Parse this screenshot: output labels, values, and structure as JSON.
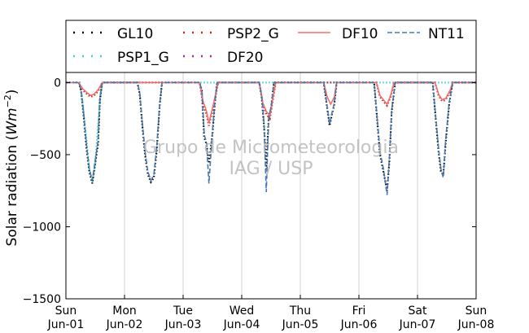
{
  "chart_data": {
    "type": "line",
    "title": "",
    "ylabel": "Solar radiation ($Wm^{-2}$)",
    "ylabel_main": "Solar radiation (",
    "ylabel_unit": "Wm",
    "ylabel_exp": "−2",
    "ylabel_close": ")",
    "xlabel": "",
    "ylim": [
      -1500,
      70
    ],
    "xlim": [
      0,
      7
    ],
    "yticks": [
      0,
      -500,
      -1000,
      -1500
    ],
    "ytick_labels": [
      "0",
      "−500",
      "−1000",
      "−1500"
    ],
    "xticks": [
      {
        "pos": 0,
        "day": "Sun",
        "date": "Jun-01"
      },
      {
        "pos": 1,
        "day": "Mon",
        "date": "Jun-02"
      },
      {
        "pos": 2,
        "day": "Tue",
        "date": "Jun-03"
      },
      {
        "pos": 3,
        "day": "Wed",
        "date": "Jun-04"
      },
      {
        "pos": 4,
        "day": "Thu",
        "date": "Jun-05"
      },
      {
        "pos": 5,
        "day": "Fri",
        "date": "Jun-06"
      },
      {
        "pos": 6,
        "day": "Sat",
        "date": "Jun-07"
      },
      {
        "pos": 7,
        "day": "Sun",
        "date": "Jun-08"
      }
    ],
    "grid": true,
    "legend_position": "top",
    "watermark": [
      "Grupo de Micrometeorologia",
      "IAG / USP"
    ],
    "series": [
      {
        "name": "GL10",
        "color": "#000000",
        "style": "dotted",
        "points": [
          [
            0.22,
            0
          ],
          [
            0.26,
            -60
          ],
          [
            0.3,
            -220
          ],
          [
            0.35,
            -450
          ],
          [
            0.4,
            -620
          ],
          [
            0.45,
            -700
          ],
          [
            0.5,
            -560
          ],
          [
            0.55,
            -420
          ],
          [
            0.58,
            -120
          ],
          [
            0.62,
            0
          ],
          [
            1.22,
            0
          ],
          [
            1.26,
            -80
          ],
          [
            1.3,
            -280
          ],
          [
            1.35,
            -500
          ],
          [
            1.4,
            -640
          ],
          [
            1.45,
            -690
          ],
          [
            1.5,
            -660
          ],
          [
            1.55,
            -470
          ],
          [
            1.6,
            -160
          ],
          [
            1.64,
            0
          ],
          [
            2.28,
            0
          ],
          [
            2.32,
            -60
          ],
          [
            2.36,
            -380
          ],
          [
            2.4,
            -430
          ],
          [
            2.44,
            -560
          ],
          [
            2.5,
            -360
          ],
          [
            2.54,
            -150
          ],
          [
            2.58,
            0
          ],
          [
            3.3,
            0
          ],
          [
            3.34,
            -100
          ],
          [
            3.38,
            -300
          ],
          [
            3.42,
            -600
          ],
          [
            3.46,
            -250
          ],
          [
            3.5,
            -180
          ],
          [
            3.55,
            0
          ],
          [
            4.4,
            0
          ],
          [
            4.45,
            -150
          ],
          [
            4.5,
            -300
          ],
          [
            4.54,
            -220
          ],
          [
            4.58,
            -150
          ],
          [
            4.62,
            0
          ],
          [
            5.26,
            0
          ],
          [
            5.3,
            -200
          ],
          [
            5.36,
            -500
          ],
          [
            5.42,
            -620
          ],
          [
            5.48,
            -750
          ],
          [
            5.52,
            -550
          ],
          [
            5.56,
            -200
          ],
          [
            5.62,
            0
          ],
          [
            6.26,
            0
          ],
          [
            6.3,
            -200
          ],
          [
            6.36,
            -480
          ],
          [
            6.4,
            -620
          ],
          [
            6.44,
            -640
          ],
          [
            6.48,
            -420
          ],
          [
            6.54,
            -150
          ],
          [
            6.6,
            0
          ]
        ]
      },
      {
        "name": "PSP1_G",
        "color": "#40d0d0",
        "style": "dotted",
        "points": [
          [
            0.24,
            0
          ],
          [
            0.3,
            -200
          ],
          [
            0.4,
            -600
          ],
          [
            0.45,
            -690
          ],
          [
            0.5,
            -560
          ],
          [
            0.58,
            -120
          ],
          [
            0.62,
            0
          ]
        ]
      },
      {
        "name": "PSP2_G",
        "color": "#d02020",
        "style": "dotted",
        "points": [
          [
            0.22,
            0
          ],
          [
            0.28,
            -50
          ],
          [
            0.36,
            -80
          ],
          [
            0.42,
            -100
          ],
          [
            0.48,
            -90
          ],
          [
            0.55,
            -60
          ],
          [
            0.62,
            0
          ],
          [
            2.28,
            0
          ],
          [
            2.34,
            -150
          ],
          [
            2.4,
            -220
          ],
          [
            2.44,
            -300
          ],
          [
            2.5,
            -200
          ],
          [
            2.56,
            -80
          ],
          [
            2.6,
            0
          ],
          [
            3.3,
            0
          ],
          [
            3.36,
            -150
          ],
          [
            3.42,
            -220
          ],
          [
            3.48,
            -250
          ],
          [
            3.54,
            -100
          ],
          [
            3.58,
            0
          ],
          [
            5.3,
            0
          ],
          [
            5.36,
            -100
          ],
          [
            5.42,
            -130
          ],
          [
            5.48,
            -160
          ],
          [
            5.54,
            -100
          ],
          [
            5.6,
            0
          ],
          [
            6.3,
            0
          ],
          [
            6.36,
            -90
          ],
          [
            6.42,
            -130
          ],
          [
            6.48,
            -120
          ],
          [
            6.56,
            -60
          ],
          [
            6.6,
            0
          ]
        ]
      },
      {
        "name": "DF10",
        "color": "#f07070",
        "style": "solid",
        "points": [
          [
            0.22,
            0
          ],
          [
            0.28,
            -40
          ],
          [
            0.36,
            -70
          ],
          [
            0.42,
            -90
          ],
          [
            0.48,
            -80
          ],
          [
            0.55,
            -50
          ],
          [
            0.62,
            0
          ],
          [
            2.28,
            0
          ],
          [
            2.34,
            -130
          ],
          [
            2.4,
            -200
          ],
          [
            2.44,
            -280
          ],
          [
            2.5,
            -180
          ],
          [
            2.56,
            -70
          ],
          [
            2.6,
            0
          ],
          [
            3.3,
            0
          ],
          [
            3.36,
            -140
          ],
          [
            3.42,
            -200
          ],
          [
            3.48,
            -230
          ],
          [
            3.54,
            -90
          ],
          [
            3.58,
            0
          ],
          [
            4.4,
            0
          ],
          [
            4.46,
            -100
          ],
          [
            4.52,
            -150
          ],
          [
            4.58,
            -100
          ],
          [
            4.62,
            0
          ],
          [
            5.3,
            0
          ],
          [
            5.36,
            -90
          ],
          [
            5.42,
            -120
          ],
          [
            5.48,
            -150
          ],
          [
            5.54,
            -90
          ],
          [
            5.6,
            0
          ],
          [
            6.3,
            0
          ],
          [
            6.36,
            -80
          ],
          [
            6.42,
            -120
          ],
          [
            6.48,
            -110
          ],
          [
            6.56,
            -50
          ],
          [
            6.6,
            0
          ]
        ]
      },
      {
        "name": "NT11",
        "color": "#4878b0",
        "style": "dashed",
        "points": [
          [
            0.22,
            0
          ],
          [
            0.26,
            -50
          ],
          [
            0.3,
            -200
          ],
          [
            0.35,
            -430
          ],
          [
            0.4,
            -600
          ],
          [
            0.45,
            -680
          ],
          [
            0.5,
            -540
          ],
          [
            0.55,
            -400
          ],
          [
            0.58,
            -110
          ],
          [
            0.62,
            0
          ],
          [
            1.22,
            0
          ],
          [
            1.26,
            -70
          ],
          [
            1.3,
            -260
          ],
          [
            1.35,
            -480
          ],
          [
            1.4,
            -620
          ],
          [
            1.45,
            -680
          ],
          [
            1.5,
            -640
          ],
          [
            1.55,
            -450
          ],
          [
            1.6,
            -150
          ],
          [
            1.64,
            0
          ],
          [
            2.28,
            0
          ],
          [
            2.32,
            -50
          ],
          [
            2.36,
            -360
          ],
          [
            2.4,
            -420
          ],
          [
            2.44,
            -700
          ],
          [
            2.5,
            -340
          ],
          [
            2.54,
            -140
          ],
          [
            2.58,
            0
          ],
          [
            3.3,
            0
          ],
          [
            3.34,
            -90
          ],
          [
            3.38,
            -280
          ],
          [
            3.42,
            -760
          ],
          [
            3.46,
            -240
          ],
          [
            3.5,
            -170
          ],
          [
            3.55,
            0
          ],
          [
            4.4,
            0
          ],
          [
            4.45,
            -140
          ],
          [
            4.5,
            -290
          ],
          [
            4.54,
            -210
          ],
          [
            4.58,
            -140
          ],
          [
            4.62,
            0
          ],
          [
            5.26,
            0
          ],
          [
            5.3,
            -190
          ],
          [
            5.36,
            -480
          ],
          [
            5.42,
            -600
          ],
          [
            5.48,
            -780
          ],
          [
            5.52,
            -530
          ],
          [
            5.56,
            -190
          ],
          [
            5.62,
            0
          ],
          [
            6.26,
            0
          ],
          [
            6.3,
            -190
          ],
          [
            6.36,
            -460
          ],
          [
            6.4,
            -600
          ],
          [
            6.44,
            -660
          ],
          [
            6.48,
            -400
          ],
          [
            6.54,
            -140
          ],
          [
            6.6,
            0
          ]
        ]
      },
      {
        "name": "DF20",
        "color": "#c02090",
        "style": "dotted",
        "points": []
      }
    ]
  }
}
